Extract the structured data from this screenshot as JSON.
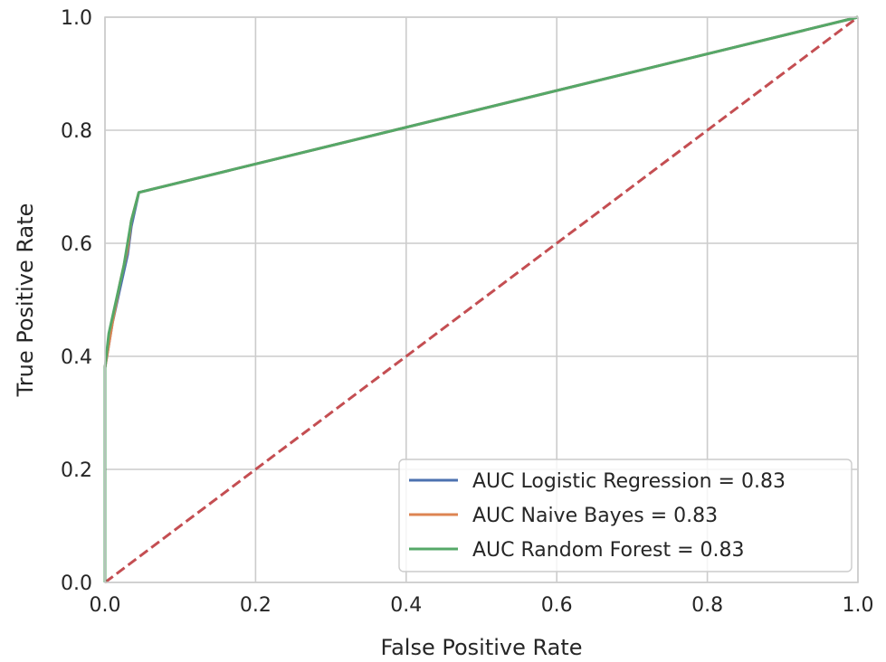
{
  "chart_data": {
    "type": "line",
    "xlabel": "False Positive Rate",
    "ylabel": "True Positive Rate",
    "xlim": [
      0.0,
      1.0
    ],
    "ylim": [
      0.0,
      1.0
    ],
    "x_ticks": [
      "0.0",
      "0.2",
      "0.4",
      "0.6",
      "0.8",
      "1.0"
    ],
    "y_ticks": [
      "0.0",
      "0.2",
      "0.4",
      "0.6",
      "0.8",
      "1.0"
    ],
    "grid": true,
    "legend_position": "bottom-right",
    "series": [
      {
        "name": "AUC Logistic Regression = 0.83",
        "color": "#4c72b0",
        "x": [
          0.0,
          0.0,
          0.01,
          0.02,
          0.03,
          0.035,
          0.045,
          1.0
        ],
        "y": [
          0.0,
          0.38,
          0.46,
          0.52,
          0.58,
          0.63,
          0.69,
          1.0
        ]
      },
      {
        "name": "AUC Naive Bayes = 0.83",
        "color": "#dd8452",
        "x": [
          0.0,
          0.0,
          0.01,
          0.02,
          0.03,
          0.035,
          0.045,
          1.0
        ],
        "y": [
          0.0,
          0.38,
          0.46,
          0.53,
          0.59,
          0.64,
          0.69,
          1.0
        ]
      },
      {
        "name": "AUC Random Forest = 0.83",
        "color": "#55a868",
        "x": [
          0.0,
          0.0,
          0.005,
          0.015,
          0.025,
          0.035,
          0.045,
          1.0
        ],
        "y": [
          0.0,
          0.38,
          0.44,
          0.5,
          0.56,
          0.64,
          0.69,
          1.0
        ]
      }
    ],
    "reference_line": {
      "color": "#c44e52",
      "style": "dashed",
      "x": [
        0.0,
        1.0
      ],
      "y": [
        0.0,
        1.0
      ]
    }
  }
}
